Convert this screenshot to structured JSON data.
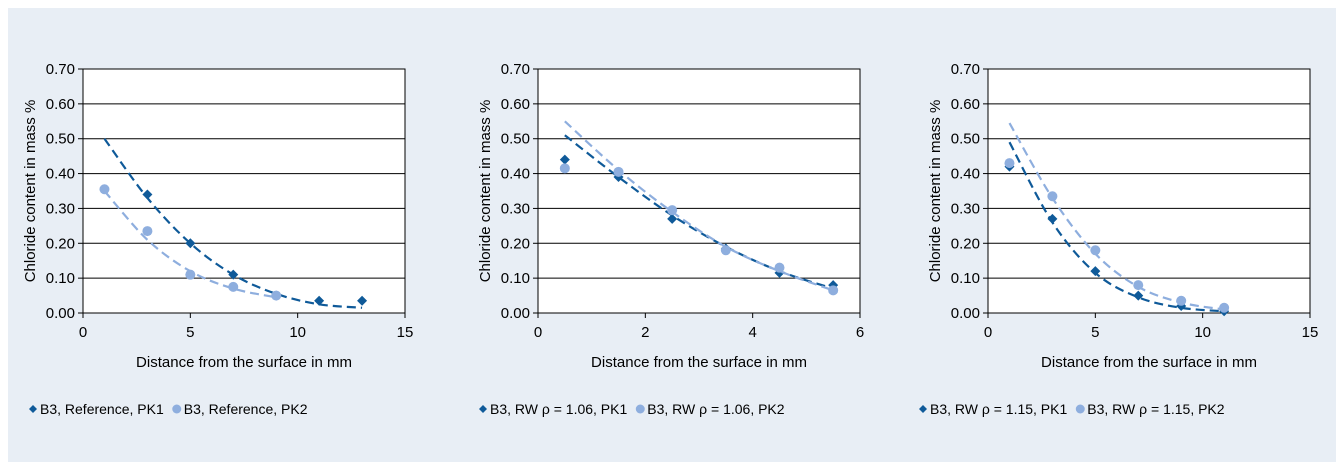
{
  "colors": {
    "background": "#e8eef5",
    "pk1": "#0f5a99",
    "pk2": "#8eaede",
    "grid": "#000000"
  },
  "chart_data": [
    {
      "type": "scatter",
      "xlabel": "Distance from the surface in mm",
      "ylabel": "Chloride content in mass %",
      "xlim": [
        0,
        15
      ],
      "ylim": [
        0,
        0.7
      ],
      "xticks": [
        "0",
        "5",
        "10",
        "15"
      ],
      "yticks": [
        "0.00",
        "0.10",
        "0.20",
        "0.30",
        "0.40",
        "0.50",
        "0.60",
        "0.70"
      ],
      "grid": "horizontal",
      "legend_position": "bottom",
      "series": [
        {
          "name": "B3, Reference, PK1",
          "marker": "diamond",
          "color": "#0f5a99",
          "x": [
            3,
            5,
            7,
            9,
            11,
            13
          ],
          "y": [
            0.34,
            0.2,
            0.11,
            0.05,
            0.035,
            0.035
          ],
          "trend": {
            "x": [
              1,
              3,
              5,
              7,
              9,
              11,
              13
            ],
            "y": [
              0.5,
              0.33,
              0.2,
              0.11,
              0.055,
              0.025,
              0.015
            ]
          }
        },
        {
          "name": "B3, Reference, PK2",
          "marker": "circle",
          "color": "#8eaede",
          "x": [
            1,
            3,
            5,
            7,
            9
          ],
          "y": [
            0.355,
            0.235,
            0.11,
            0.075,
            0.05
          ],
          "trend": {
            "x": [
              1,
              3,
              5,
              7,
              9
            ],
            "y": [
              0.35,
              0.21,
              0.12,
              0.07,
              0.045
            ]
          }
        }
      ]
    },
    {
      "type": "scatter",
      "xlabel": "Distance from the surface in mm",
      "ylabel": "Chloride content in mass %",
      "xlim": [
        0,
        6
      ],
      "ylim": [
        0,
        0.7
      ],
      "xticks": [
        "0",
        "2",
        "4",
        "6"
      ],
      "yticks": [
        "0.00",
        "0.10",
        "0.20",
        "0.30",
        "0.40",
        "0.50",
        "0.60",
        "0.70"
      ],
      "grid": "horizontal",
      "legend_position": "bottom",
      "series": [
        {
          "name": "B3, RW ρ = 1.06, PK1",
          "marker": "diamond",
          "color": "#0f5a99",
          "x": [
            0.5,
            1.5,
            2.5,
            3.5,
            4.5,
            5.5
          ],
          "y": [
            0.44,
            0.39,
            0.27,
            0.185,
            0.115,
            0.08
          ],
          "trend": {
            "x": [
              0.5,
              1.5,
              2.5,
              3.5,
              4.5,
              5.5
            ],
            "y": [
              0.51,
              0.39,
              0.28,
              0.19,
              0.12,
              0.07
            ]
          }
        },
        {
          "name": "B3, RW ρ = 1.06, PK2",
          "marker": "circle",
          "color": "#8eaede",
          "x": [
            0.5,
            1.5,
            2.5,
            3.5,
            4.5,
            5.5
          ],
          "y": [
            0.415,
            0.405,
            0.295,
            0.18,
            0.13,
            0.065
          ],
          "trend": {
            "x": [
              0.5,
              1.5,
              2.5,
              3.5,
              4.5,
              5.5
            ],
            "y": [
              0.55,
              0.41,
              0.29,
              0.19,
              0.12,
              0.065
            ]
          }
        }
      ]
    },
    {
      "type": "scatter",
      "xlabel": "Distance from the surface in mm",
      "ylabel": "Chloride content in mass %",
      "xlim": [
        0,
        15
      ],
      "ylim": [
        0,
        0.7
      ],
      "xticks": [
        "0",
        "5",
        "10",
        "15"
      ],
      "yticks": [
        "0.00",
        "0.10",
        "0.20",
        "0.30",
        "0.40",
        "0.50",
        "0.60",
        "0.70"
      ],
      "grid": "horizontal",
      "legend_position": "bottom",
      "series": [
        {
          "name": "B3, RW ρ = 1.15, PK1",
          "marker": "diamond",
          "color": "#0f5a99",
          "x": [
            1,
            3,
            5,
            7,
            9,
            11
          ],
          "y": [
            0.42,
            0.27,
            0.12,
            0.05,
            0.02,
            0.005
          ],
          "trend": {
            "x": [
              1,
              3,
              5,
              7,
              9,
              11
            ],
            "y": [
              0.49,
              0.26,
              0.115,
              0.045,
              0.015,
              0.005
            ]
          }
        },
        {
          "name": "B3, RW ρ = 1.15, PK2",
          "marker": "circle",
          "color": "#8eaede",
          "x": [
            1,
            3,
            5,
            7,
            9,
            11
          ],
          "y": [
            0.43,
            0.335,
            0.18,
            0.08,
            0.035,
            0.015
          ],
          "trend": {
            "x": [
              1,
              3,
              5,
              7,
              9,
              11
            ],
            "y": [
              0.545,
              0.33,
              0.17,
              0.075,
              0.03,
              0.01
            ]
          }
        }
      ]
    }
  ]
}
